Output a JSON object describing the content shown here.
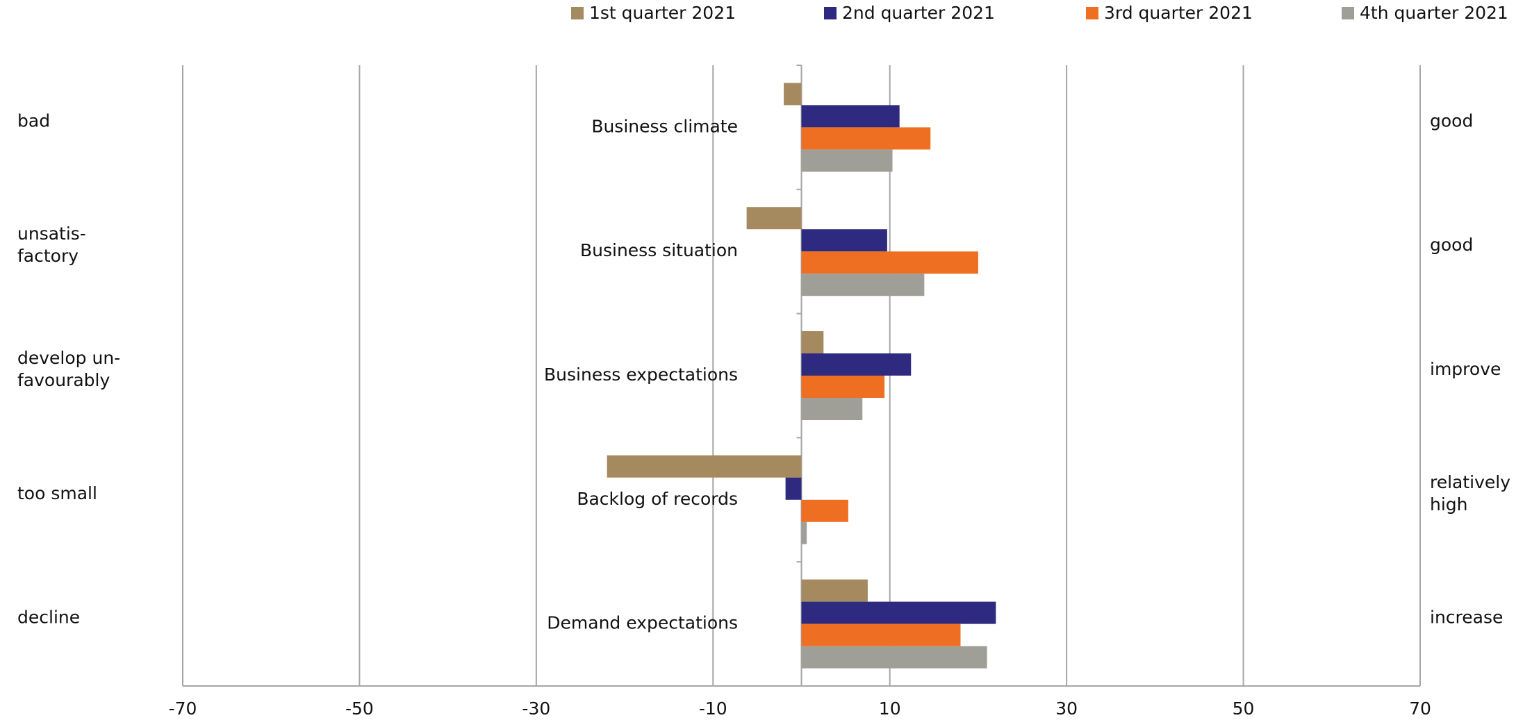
{
  "chart_data": {
    "type": "bar",
    "orientation": "horizontal",
    "categories": [
      "Business climate",
      "Business situation",
      "Business expectations",
      "Backlog of records",
      "Demand expectations"
    ],
    "left_labels": [
      [
        "bad"
      ],
      [
        "unsatis-",
        "factory"
      ],
      [
        "develop un-",
        "favourably"
      ],
      [
        "too small"
      ],
      [
        "decline"
      ]
    ],
    "right_labels": [
      [
        "good"
      ],
      [
        "good"
      ],
      [
        "improve"
      ],
      [
        "relatively",
        "high"
      ],
      [
        "increase"
      ]
    ],
    "series": [
      {
        "name": "1st quarter 2021",
        "color": "#a58a5f",
        "values": [
          -2,
          -6.2,
          2.5,
          -22,
          7.5
        ]
      },
      {
        "name": "2nd quarter 2021",
        "color": "#2e2a7f",
        "values": [
          11.1,
          9.7,
          12.4,
          -1.8,
          22
        ]
      },
      {
        "name": "3rd quarter 2021",
        "color": "#ef6f22",
        "values": [
          14.6,
          20,
          9.4,
          5.3,
          18
        ]
      },
      {
        "name": "4th quarter 2021",
        "color": "#a09f97",
        "values": [
          10.3,
          13.9,
          6.9,
          0.6,
          21
        ]
      }
    ],
    "xlim": [
      -70,
      70
    ],
    "xticks": [
      -70,
      -50,
      -30,
      -10,
      10,
      30,
      50,
      70
    ],
    "grid": true,
    "legend": "top"
  }
}
